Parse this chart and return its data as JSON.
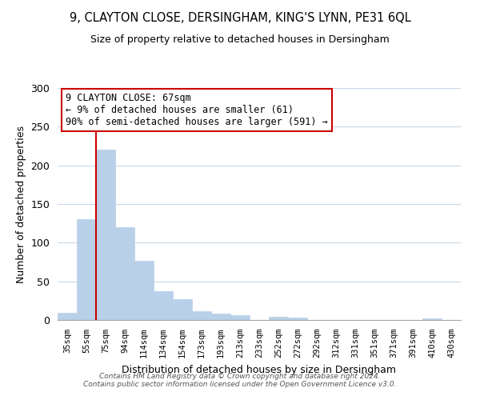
{
  "title1": "9, CLAYTON CLOSE, DERSINGHAM, KING'S LYNN, PE31 6QL",
  "title2": "Size of property relative to detached houses in Dersingham",
  "xlabel": "Distribution of detached houses by size in Dersingham",
  "ylabel": "Number of detached properties",
  "bar_labels": [
    "35sqm",
    "55sqm",
    "75sqm",
    "94sqm",
    "114sqm",
    "134sqm",
    "154sqm",
    "173sqm",
    "193sqm",
    "213sqm",
    "233sqm",
    "252sqm",
    "272sqm",
    "292sqm",
    "312sqm",
    "331sqm",
    "351sqm",
    "371sqm",
    "391sqm",
    "410sqm",
    "430sqm"
  ],
  "bar_values": [
    9,
    130,
    220,
    120,
    77,
    37,
    27,
    11,
    8,
    6,
    0,
    4,
    3,
    0,
    0,
    0,
    0,
    0,
    0,
    2,
    0
  ],
  "bar_color": "#b8d0e8",
  "bar_edge_color": "#b8d0e8",
  "vline_x": 1.5,
  "vline_color": "#cc0000",
  "ylim": [
    0,
    300
  ],
  "yticks": [
    0,
    50,
    100,
    150,
    200,
    250,
    300
  ],
  "annotation_title": "9 CLAYTON CLOSE: 67sqm",
  "annotation_line1": "← 9% of detached houses are smaller (61)",
  "annotation_line2": "90% of semi-detached houses are larger (591) →",
  "annotation_box_color": "#ffffff",
  "annotation_box_edge": "#cc0000",
  "footer1": "Contains HM Land Registry data © Crown copyright and database right 2024.",
  "footer2": "Contains public sector information licensed under the Open Government Licence v3.0.",
  "background_color": "#ffffff",
  "grid_color": "#c8d8e8"
}
